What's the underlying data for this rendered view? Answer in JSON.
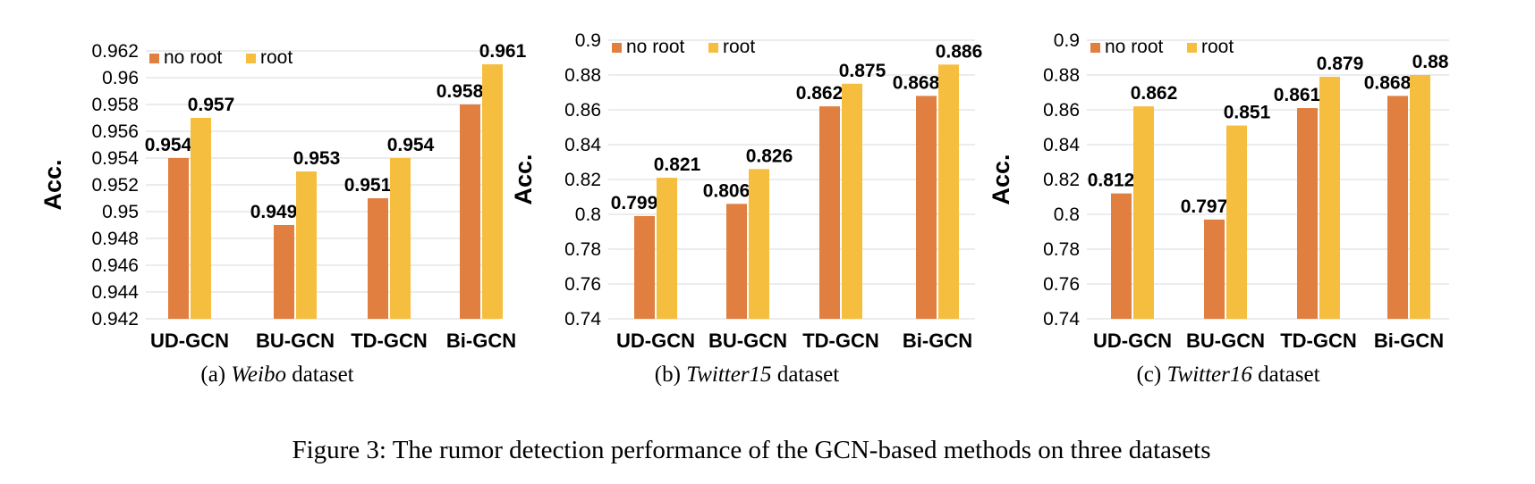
{
  "figure_caption": "Figure 3: The rumor detection performance of the GCN-based methods on three datasets",
  "colors": {
    "no_root": "#E07F40",
    "root": "#F5BE3F",
    "grid": "#D9D9D9",
    "text": "#000000"
  },
  "chart_data": [
    {
      "type": "bar",
      "subcaption": {
        "prefix": "(a)",
        "dataset": "Weibo",
        "suffix": "dataset"
      },
      "ylabel": "Acc.",
      "ylim": [
        0.942,
        0.962
      ],
      "yticks": [
        0.942,
        0.944,
        0.946,
        0.948,
        0.95,
        0.952,
        0.954,
        0.956,
        0.958,
        0.96,
        0.962
      ],
      "ytick_labels": [
        "0.942",
        "0.944",
        "0.946",
        "0.948",
        "0.95",
        "0.952",
        "0.954",
        "0.956",
        "0.958",
        "0.96",
        "0.962"
      ],
      "categories": [
        "UD-GCN",
        "BU-GCN",
        "TD-GCN",
        "Bi-GCN"
      ],
      "series": [
        {
          "name": "no root",
          "key": "no_root",
          "values": [
            0.954,
            0.949,
            0.951,
            0.958
          ],
          "labels": [
            "0.954",
            "0.949",
            "0.951",
            "0.958"
          ]
        },
        {
          "name": "root",
          "key": "root",
          "values": [
            0.957,
            0.953,
            0.954,
            0.961
          ],
          "labels": [
            "0.957",
            "0.953",
            "0.954",
            "0.961"
          ]
        }
      ],
      "legend": "top-left"
    },
    {
      "type": "bar",
      "subcaption": {
        "prefix": "(b)",
        "dataset": "Twitter15",
        "suffix": "dataset"
      },
      "ylabel": "Acc.",
      "ylim": [
        0.74,
        0.9
      ],
      "yticks": [
        0.74,
        0.76,
        0.78,
        0.8,
        0.82,
        0.84,
        0.86,
        0.88,
        0.9
      ],
      "ytick_labels": [
        "0.74",
        "0.76",
        "0.78",
        "0.8",
        "0.82",
        "0.84",
        "0.86",
        "0.88",
        "0.9"
      ],
      "categories": [
        "UD-GCN",
        "BU-GCN",
        "TD-GCN",
        "Bi-GCN"
      ],
      "series": [
        {
          "name": "no root",
          "key": "no_root",
          "values": [
            0.799,
            0.806,
            0.862,
            0.868
          ],
          "labels": [
            "0.799",
            "0.806",
            "0.862",
            "0.868"
          ]
        },
        {
          "name": "root",
          "key": "root",
          "values": [
            0.821,
            0.826,
            0.875,
            0.886
          ],
          "labels": [
            "0.821",
            "0.826",
            "0.875",
            "0.886"
          ]
        }
      ],
      "legend": "top-left"
    },
    {
      "type": "bar",
      "subcaption": {
        "prefix": "(c)",
        "dataset": "Twitter16",
        "suffix": "dataset"
      },
      "ylabel": "Acc.",
      "ylim": [
        0.74,
        0.9
      ],
      "yticks": [
        0.74,
        0.76,
        0.78,
        0.8,
        0.82,
        0.84,
        0.86,
        0.88,
        0.9
      ],
      "ytick_labels": [
        "0.74",
        "0.76",
        "0.78",
        "0.8",
        "0.82",
        "0.84",
        "0.86",
        "0.88",
        "0.9"
      ],
      "categories": [
        "UD-GCN",
        "BU-GCN",
        "TD-GCN",
        "Bi-GCN"
      ],
      "series": [
        {
          "name": "no root",
          "key": "no_root",
          "values": [
            0.812,
            0.797,
            0.861,
            0.868
          ],
          "labels": [
            "0.812",
            "0.797",
            "0.861",
            "0.868"
          ]
        },
        {
          "name": "root",
          "key": "root",
          "values": [
            0.862,
            0.851,
            0.879,
            0.88
          ],
          "labels": [
            "0.862",
            "0.851",
            "0.879",
            "0.88"
          ]
        }
      ],
      "legend": "top-left"
    }
  ]
}
